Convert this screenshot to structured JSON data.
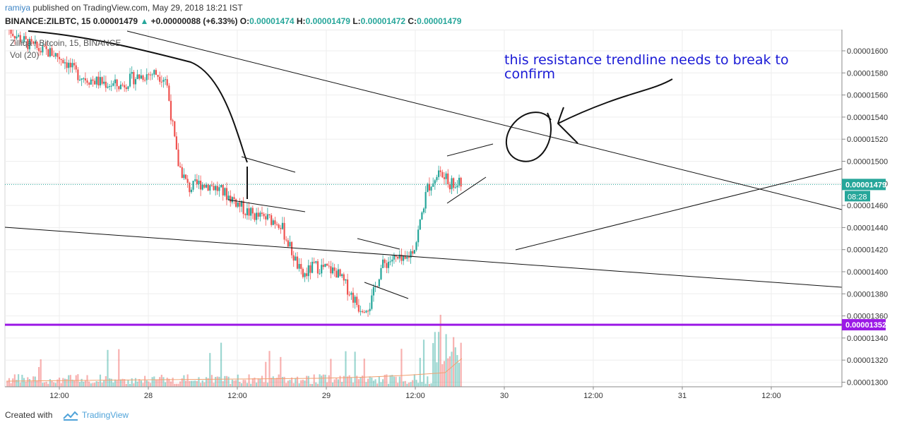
{
  "header": {
    "publisher": "ramiya",
    "published_text": "published on TradingView.com, May 29, 2018 18:21 IST",
    "symbol": "BINANCE:ZILBTC, 15",
    "last": "0.00001479",
    "change": "+0.00000088",
    "change_pct": "(+6.33%)",
    "o_label": "O:",
    "o": "0.00001474",
    "h_label": "H:",
    "h": "0.00001479",
    "l_label": "L:",
    "l": "0.00001472",
    "c_label": "C:",
    "c": "0.00001479",
    "up_color": "#26a69a"
  },
  "legend": {
    "title": "Zilliqa / Bitcoin, 15, BINANCE",
    "volume": "Vol (20)"
  },
  "annotation": {
    "line1": "this resistance trendline needs to break to",
    "line2": "confirm",
    "color": "#1a1ad6"
  },
  "chart_data": {
    "type": "candlestick",
    "interval": "15",
    "x_ticks": [
      "12:00",
      "28",
      "12:00",
      "29",
      "12:00",
      "30",
      "12:00",
      "31",
      "12:00"
    ],
    "y_ticks": [
      "0.00001300",
      "0.00001320",
      "0.00001340",
      "0.00001360",
      "0.00001380",
      "0.00001400",
      "0.00001420",
      "0.00001440",
      "0.00001460",
      "0.00001480",
      "0.00001500",
      "0.00001520",
      "0.00001540",
      "0.00001560",
      "0.00001580",
      "0.00001600"
    ],
    "ylim": [
      1.29e-05,
      1.61e-05
    ],
    "last_price_label": "0.00001479",
    "countdown": "08:28",
    "support_label": "0.00001352",
    "support_value": 1.352e-05,
    "price_path": [
      1.621,
      1.612,
      1.605,
      1.6,
      1.598,
      1.592,
      1.58,
      1.575,
      1.572,
      1.57,
      1.568,
      1.575,
      1.578,
      1.58,
      1.575,
      1.5,
      1.475,
      1.48,
      1.478,
      1.472,
      1.465,
      1.455,
      1.45,
      1.448,
      1.445,
      1.42,
      1.395,
      1.405,
      1.403,
      1.4,
      1.385,
      1.368,
      1.37,
      1.405,
      1.412,
      1.408,
      1.425,
      1.475,
      1.49,
      1.48,
      1.479
    ],
    "volume_series": "Vol (20)",
    "colors": {
      "up": "#26a69a",
      "down": "#ef5350",
      "support": "#9b19e6",
      "last_line": "#26a69a"
    }
  },
  "footer": {
    "created_with": "Created with",
    "brand": "TradingView"
  }
}
